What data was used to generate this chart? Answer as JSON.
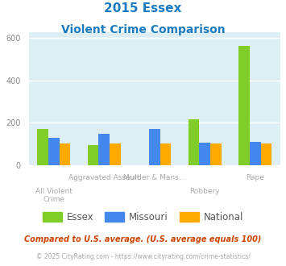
{
  "title_line1": "2015 Essex",
  "title_line2": "Violent Crime Comparison",
  "essex_values": [
    170,
    95,
    0,
    215,
    565
  ],
  "missouri_values": [
    130,
    148,
    170,
    105,
    110
  ],
  "national_values": [
    100,
    100,
    100,
    100,
    100
  ],
  "colors": {
    "Essex": "#80cc28",
    "Missouri": "#4488ee",
    "National": "#ffaa00"
  },
  "ylim": [
    0,
    630
  ],
  "yticks": [
    0,
    200,
    400,
    600
  ],
  "background_plot": "#deeef5",
  "title_color": "#1a7abf",
  "label_color": "#aaaaaa",
  "footer1": "Compared to U.S. average. (U.S. average equals 100)",
  "footer2": "© 2025 CityRating.com - https://www.cityrating.com/crime-statistics/",
  "footer1_color": "#cc4400",
  "footer2_color": "#aaaaaa",
  "legend_label_color": "#555555"
}
